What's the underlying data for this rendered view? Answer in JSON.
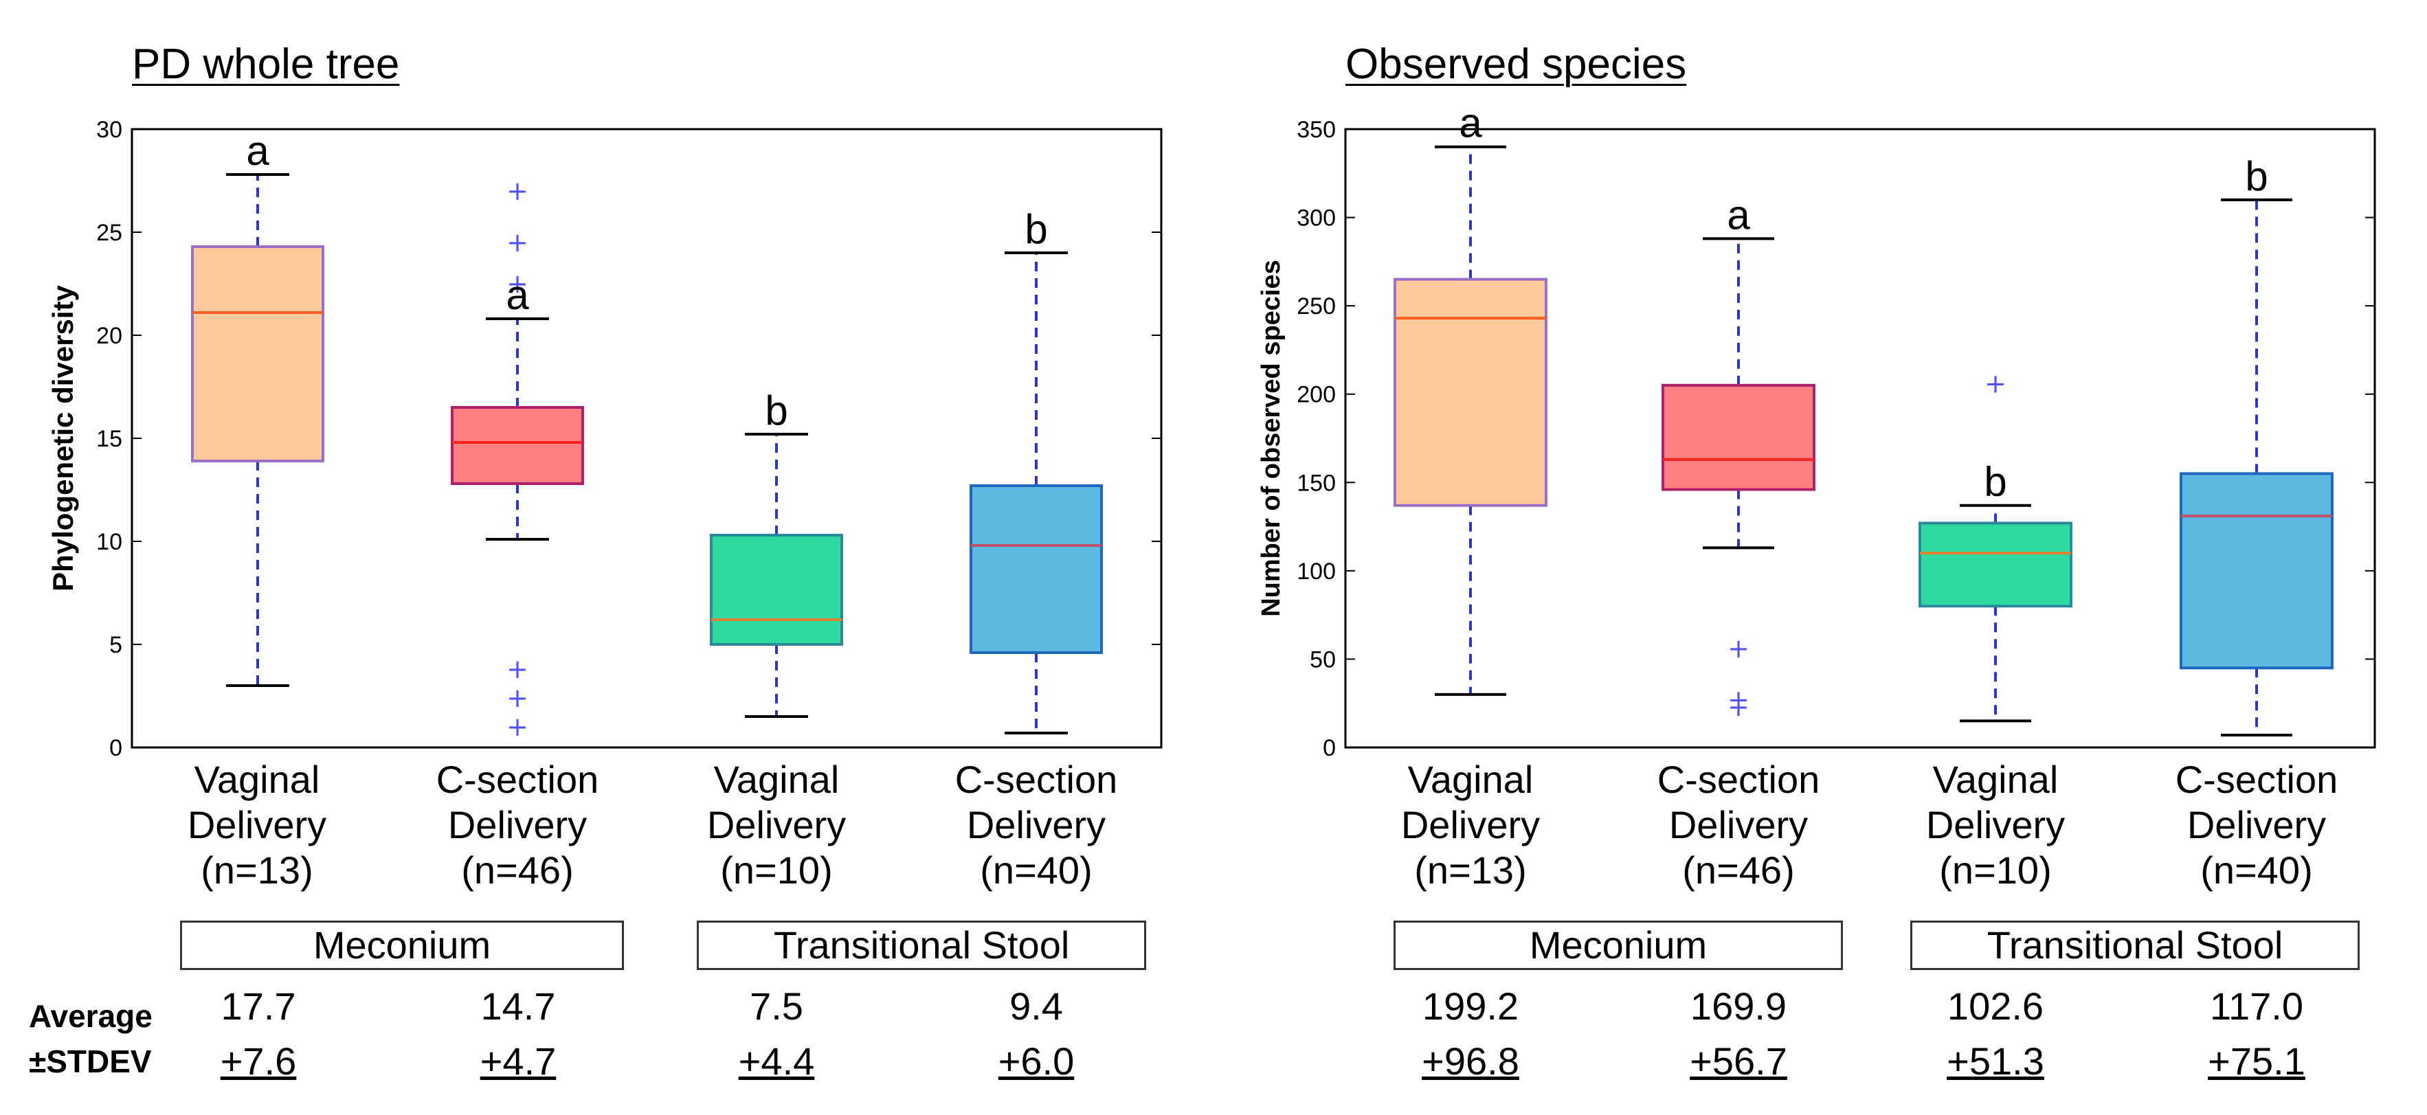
{
  "colors": {
    "vaginal_meconium": "#FDC89A",
    "csection_meconium": "#FF8080",
    "vaginal_transitional": "#2FD8A0",
    "csection_transitional": "#5DB9E0",
    "whisker": "#2B35C8",
    "outlier": "#5050FF",
    "median": "#FF6020"
  },
  "row_labels": {
    "average": "Average",
    "stdev": "±STDEV"
  },
  "groups": [
    "Meconium",
    "Transitional Stool"
  ],
  "categories": [
    {
      "line1": "Vaginal",
      "line2": "Delivery",
      "line3": "(n=13)"
    },
    {
      "line1": "C-section",
      "line2": "Delivery",
      "line3": "(n=46)"
    },
    {
      "line1": "Vaginal",
      "line2": "Delivery",
      "line3": "(n=10)"
    },
    {
      "line1": "C-section",
      "line2": "Delivery",
      "line3": "(n=40)"
    }
  ],
  "chart_data": [
    {
      "type": "box",
      "title": "PD whole tree",
      "ylabel": "Phylogenetic diversity",
      "ylim": [
        0,
        30
      ],
      "yticks": [
        "0",
        "5",
        "10",
        "15",
        "20",
        "25",
        "30"
      ],
      "boxes": [
        {
          "name": "Vaginal Delivery (n=13)",
          "group": "Meconium",
          "whisker_low": 3.0,
          "q1": 13.9,
          "median": 21.1,
          "q3": 24.3,
          "whisker_high": 27.8,
          "outliers": [],
          "letter": "a",
          "average": "17.7",
          "stdev": "+7.6"
        },
        {
          "name": "C-section Delivery (n=46)",
          "group": "Meconium",
          "whisker_low": 10.1,
          "q1": 12.8,
          "median": 14.8,
          "q3": 16.5,
          "whisker_high": 20.8,
          "outliers": [
            27.0,
            24.5,
            22.5,
            3.8,
            2.4,
            1.0
          ],
          "letter": "a",
          "average": "14.7",
          "stdev": "+4.7"
        },
        {
          "name": "Vaginal Delivery (n=10)",
          "group": "Transitional Stool",
          "whisker_low": 1.5,
          "q1": 5.0,
          "median": 6.2,
          "q3": 10.3,
          "whisker_high": 15.2,
          "outliers": [],
          "letter": "b",
          "average": "7.5",
          "stdev": "+4.4"
        },
        {
          "name": "C-section Delivery (n=40)",
          "group": "Transitional Stool",
          "whisker_low": 0.7,
          "q1": 4.6,
          "median": 9.8,
          "q3": 12.7,
          "whisker_high": 24.0,
          "outliers": [],
          "letter": "b",
          "average": "9.4",
          "stdev": "+6.0"
        }
      ]
    },
    {
      "type": "box",
      "title": "Observed species",
      "ylabel": "Number of observed species",
      "ylim": [
        0,
        350
      ],
      "yticks": [
        "0",
        "50",
        "100",
        "150",
        "200",
        "250",
        "300",
        "350"
      ],
      "boxes": [
        {
          "name": "Vaginal Delivery (n=13)",
          "group": "Meconium",
          "whisker_low": 30,
          "q1": 137,
          "median": 243,
          "q3": 265,
          "whisker_high": 340,
          "outliers": [],
          "letter": "a",
          "average": "199.2",
          "stdev": "+96.8"
        },
        {
          "name": "C-section Delivery (n=46)",
          "group": "Meconium",
          "whisker_low": 113,
          "q1": 146,
          "median": 163,
          "q3": 205,
          "whisker_high": 288,
          "outliers": [
            56,
            27,
            23
          ],
          "letter": "a",
          "average": "169.9",
          "stdev": "+56.7"
        },
        {
          "name": "Vaginal Delivery (n=10)",
          "group": "Transitional Stool",
          "whisker_low": 15,
          "q1": 80,
          "median": 110,
          "q3": 127,
          "whisker_high": 137,
          "outliers": [
            206
          ],
          "letter": "b",
          "average": "102.6",
          "stdev": "+51.3"
        },
        {
          "name": "C-section Delivery (n=40)",
          "group": "Transitional Stool",
          "whisker_low": 7,
          "q1": 45,
          "median": 131,
          "q3": 155,
          "whisker_high": 310,
          "outliers": [],
          "letter": "b",
          "average": "117.0",
          "stdev": "+75.1"
        }
      ]
    }
  ]
}
